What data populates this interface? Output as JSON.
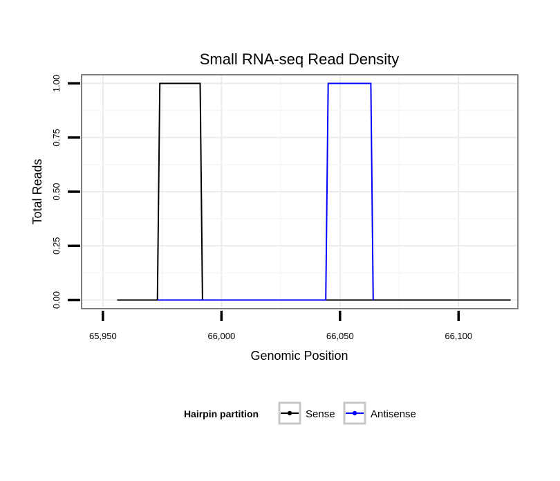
{
  "chart_data": {
    "type": "line",
    "title": "Small RNA-seq Read Density",
    "xlabel": "Genomic Position",
    "ylabel": "Total Reads",
    "xlim": [
      65941,
      66125
    ],
    "ylim": [
      -0.04,
      1.04
    ],
    "x_ticks": [
      65950,
      66000,
      66050,
      66100
    ],
    "x_tick_labels": [
      "65,950",
      "66,000",
      "66,050",
      "66,100"
    ],
    "y_ticks": [
      0,
      0.25,
      0.5,
      0.75,
      1
    ],
    "y_tick_labels": [
      "0.00",
      "0.25",
      "0.50",
      "0.75",
      "1.00"
    ],
    "grid": true,
    "legend": {
      "title": "Hairpin partition",
      "position": "bottom"
    },
    "series": [
      {
        "name": "Sense",
        "color": "#000000",
        "x": [
          65956,
          65973,
          65974,
          65991,
          65992,
          66122
        ],
        "y": [
          0,
          0,
          1,
          1,
          0,
          0
        ]
      },
      {
        "name": "Antisense",
        "color": "#0000ff",
        "x": [
          65973,
          65991,
          66044,
          66045,
          66063,
          66064
        ],
        "y": [
          0,
          0,
          0,
          1,
          1,
          0
        ]
      }
    ]
  }
}
